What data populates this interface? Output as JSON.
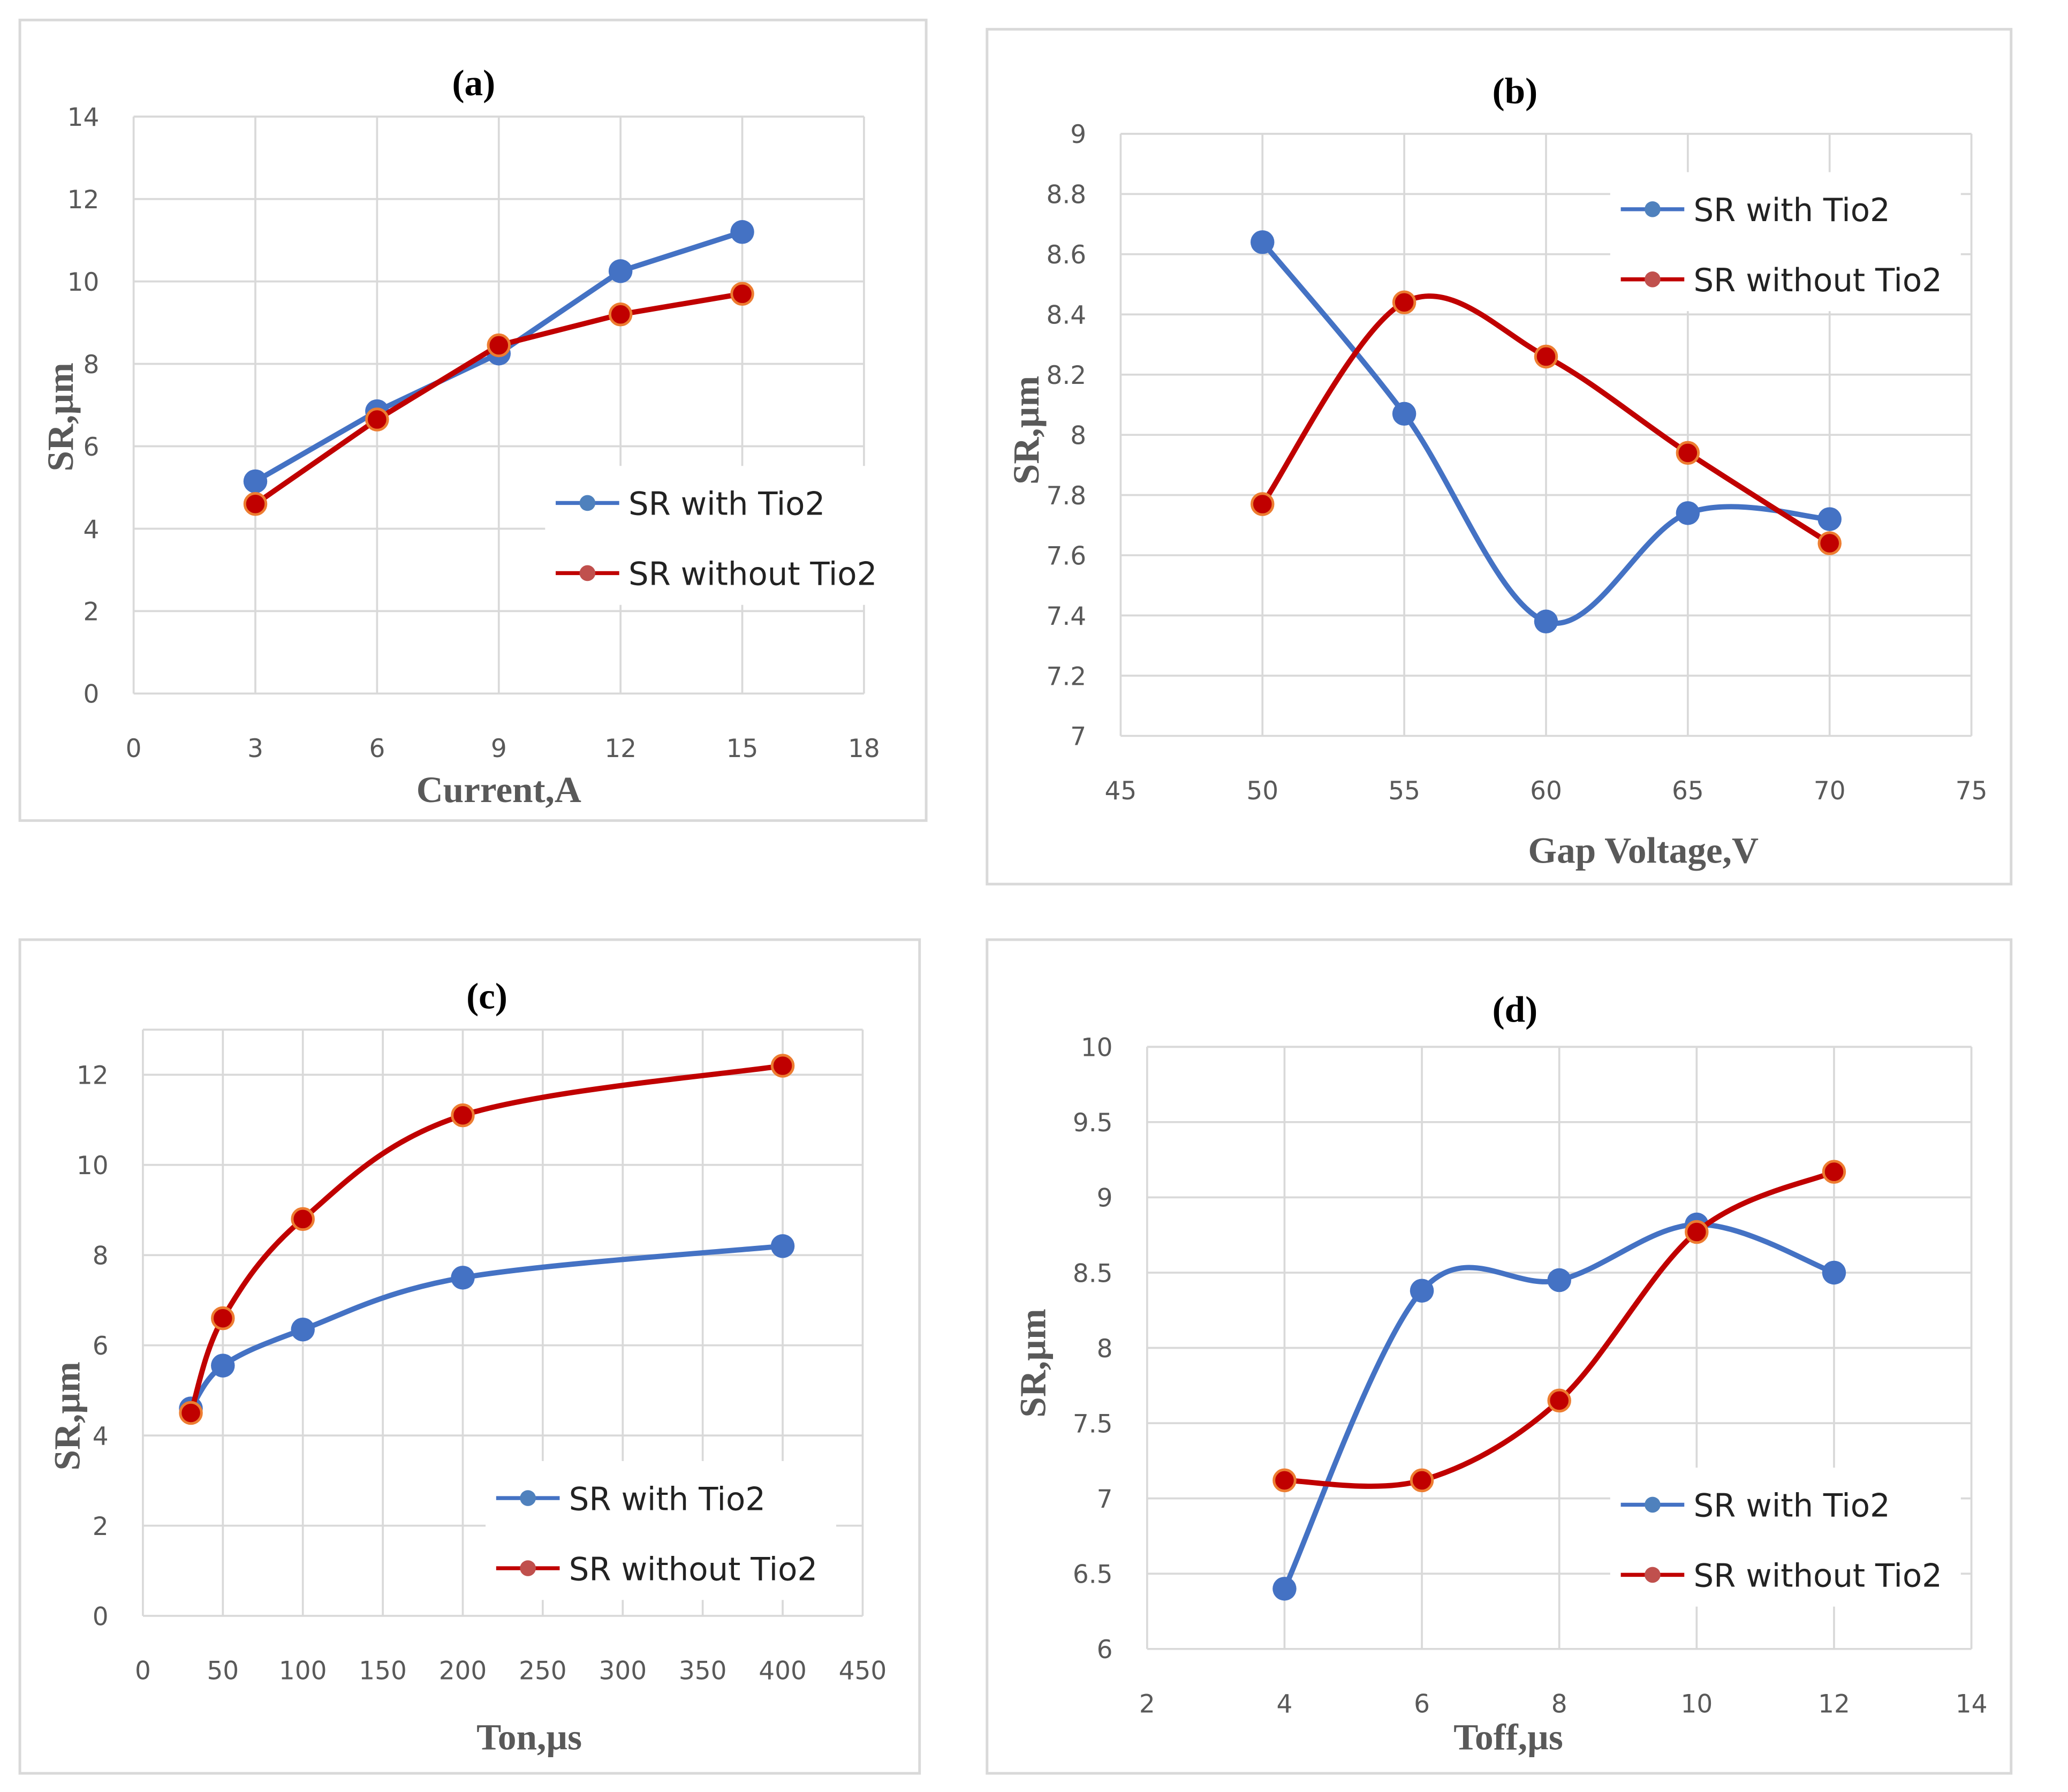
{
  "colors": {
    "with": "#4472c4",
    "without": "#c00000",
    "without_marker_edge": "#ed7d31"
  },
  "chart_data": [
    {
      "type": "line",
      "title": "(a)",
      "xlabel": "Current,A",
      "ylabel": "SR,µm",
      "x": [
        3,
        6,
        9,
        12,
        15
      ],
      "xlim": [
        0,
        18
      ],
      "xticks": [
        0,
        3,
        6,
        9,
        12,
        15,
        18
      ],
      "ylim": [
        0,
        14
      ],
      "yticks": [
        0,
        2,
        4,
        6,
        8,
        10,
        12,
        14
      ],
      "smooth": false,
      "legend": "bottom-right",
      "grid": true,
      "series": [
        {
          "name": "SR with Tio2",
          "values": [
            5.15,
            6.85,
            8.25,
            10.25,
            11.2
          ]
        },
        {
          "name": "SR without Tio2",
          "values": [
            4.6,
            6.65,
            8.45,
            9.2,
            9.7
          ]
        }
      ]
    },
    {
      "type": "line",
      "title": "(b)",
      "xlabel": "Gap Voltage,V",
      "ylabel": "SR,µm",
      "x": [
        50,
        55,
        60,
        65,
        70
      ],
      "xlim": [
        45,
        75
      ],
      "xticks": [
        45,
        50,
        55,
        60,
        65,
        70,
        75
      ],
      "ylim": [
        7,
        9
      ],
      "yticks": [
        "7",
        "7.2",
        "7.4",
        "7.6",
        "7.8",
        "8",
        "8.2",
        "8.4",
        "8.6",
        "8.8",
        "9"
      ],
      "smooth": true,
      "legend": "top-right",
      "grid": true,
      "series": [
        {
          "name": "SR with Tio2",
          "values": [
            8.64,
            8.07,
            7.38,
            7.74,
            7.72
          ]
        },
        {
          "name": "SR without Tio2",
          "values": [
            7.77,
            8.44,
            8.26,
            7.94,
            7.64
          ]
        }
      ]
    },
    {
      "type": "line",
      "title": "(c)",
      "xlabel": "Ton,µs",
      "ylabel": "SR,µm",
      "x": [
        30,
        50,
        100,
        200,
        400
      ],
      "xlim": [
        0,
        450
      ],
      "xticks": [
        0,
        50,
        100,
        150,
        200,
        250,
        300,
        350,
        400,
        450
      ],
      "ylim": [
        0,
        13
      ],
      "yticks": [
        0,
        2,
        4,
        6,
        8,
        10,
        12
      ],
      "smooth": true,
      "legend": "bottom-right",
      "grid": true,
      "series": [
        {
          "name": "SR with Tio2",
          "values": [
            4.6,
            5.55,
            6.35,
            7.5,
            8.2
          ]
        },
        {
          "name": "SR without Tio2",
          "values": [
            4.5,
            6.6,
            8.8,
            11.1,
            12.2
          ]
        }
      ]
    },
    {
      "type": "line",
      "title": "(d)",
      "xlabel": "Toff,µs",
      "ylabel": "SR,µm",
      "x": [
        4,
        6,
        8,
        10,
        12
      ],
      "xlim": [
        2,
        14
      ],
      "xticks": [
        2,
        4,
        6,
        8,
        10,
        12,
        14
      ],
      "ylim": [
        6,
        10
      ],
      "yticks": [
        "6",
        "6.5",
        "7",
        "7.5",
        "8",
        "8.5",
        "9",
        "9.5",
        "10"
      ],
      "smooth": true,
      "legend": "bottom-right",
      "grid": true,
      "series": [
        {
          "name": "SR with Tio2",
          "values": [
            6.4,
            8.38,
            8.45,
            8.82,
            8.5
          ]
        },
        {
          "name": "SR without Tio2",
          "values": [
            7.12,
            7.12,
            7.65,
            8.77,
            9.17
          ]
        }
      ]
    }
  ]
}
